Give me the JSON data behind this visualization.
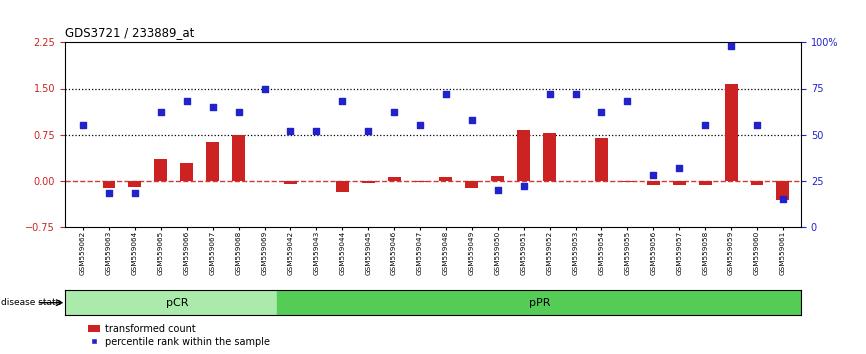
{
  "title": "GDS3721 / 233889_at",
  "samples": [
    "GSM559062",
    "GSM559063",
    "GSM559064",
    "GSM559065",
    "GSM559066",
    "GSM559067",
    "GSM559068",
    "GSM559069",
    "GSM559042",
    "GSM559043",
    "GSM559044",
    "GSM559045",
    "GSM559046",
    "GSM559047",
    "GSM559048",
    "GSM559049",
    "GSM559050",
    "GSM559051",
    "GSM559052",
    "GSM559053",
    "GSM559054",
    "GSM559055",
    "GSM559056",
    "GSM559057",
    "GSM559058",
    "GSM559059",
    "GSM559060",
    "GSM559061"
  ],
  "transformed_count": [
    0.0,
    -0.12,
    -0.1,
    0.35,
    0.28,
    0.62,
    0.75,
    0.0,
    -0.05,
    0.0,
    -0.18,
    -0.04,
    0.05,
    -0.03,
    0.05,
    -0.12,
    0.08,
    0.82,
    0.78,
    0.0,
    0.7,
    -0.03,
    -0.08,
    -0.08,
    -0.07,
    1.58,
    -0.08,
    -0.32
  ],
  "percentile_rank": [
    55,
    18,
    18,
    62,
    68,
    65,
    62,
    75,
    52,
    52,
    68,
    52,
    62,
    55,
    72,
    58,
    20,
    22,
    72,
    72,
    62,
    68,
    28,
    32,
    55,
    98,
    55,
    15
  ],
  "pcr_count": 8,
  "ppr_count": 20,
  "ylim_left": [
    -0.75,
    2.25
  ],
  "ylim_right": [
    0,
    100
  ],
  "yticks_left": [
    -0.75,
    0,
    0.75,
    1.5,
    2.25
  ],
  "yticks_right": [
    0,
    25,
    50,
    75,
    100
  ],
  "hline_dotted": [
    1.5,
    0.75
  ],
  "bar_color": "#cc2222",
  "dot_color": "#2222cc",
  "zero_line_color": "#cc2222",
  "pcr_color": "#aaeaaa",
  "ppr_color": "#55cc55",
  "label_bar": "transformed count",
  "label_dot": "percentile rank within the sample",
  "disease_state_label": "disease state",
  "pcr_label": "pCR",
  "ppr_label": "pPR",
  "background_color": "#ffffff",
  "plot_bg": "#ffffff",
  "tick_label_color_left": "#cc2222",
  "tick_label_color_right": "#2222cc"
}
